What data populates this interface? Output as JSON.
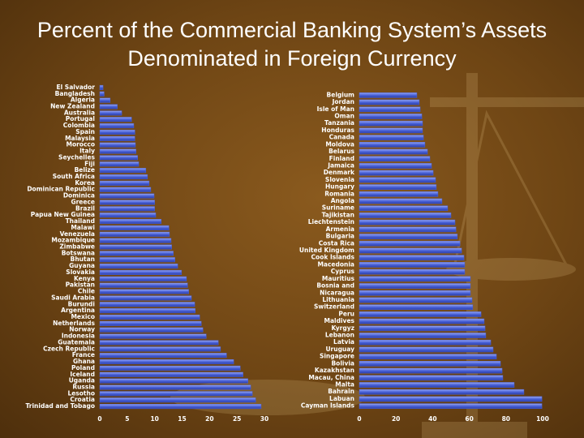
{
  "title": "Percent of the Commercial Banking System’s Assets Denominated in Foreign Currency",
  "chart_data": [
    {
      "type": "hbar",
      "color": "#4a62d8",
      "categories": [
        "El Salvador",
        "Bangladesh",
        "Algeria",
        "New Zealand",
        "Australia",
        "Portugal",
        "Colombia",
        "Spain",
        "Malaysia",
        "Morocco",
        "Italy",
        "Seychelles",
        "Fiji",
        "Belize",
        "South Africa",
        "Korea",
        "Dominican Republic",
        "Dominica",
        "Greece",
        "Brazil",
        "Papua New Guinea",
        "Thailand",
        "Malawi",
        "Venezuela",
        "Mozambique",
        "Zimbabwe",
        "Botswana",
        "Bhutan",
        "Guyana",
        "Slovakia",
        "Kenya",
        "Pakistan",
        "Chile",
        "Saudi Arabia",
        "Burundi",
        "Argentina",
        "Mexico",
        "Netherlands",
        "Norway",
        "Indonesia",
        "Guatemala",
        "Czech Republic",
        "France",
        "Ghana",
        "Poland",
        "Iceland",
        "Uganda",
        "Russia",
        "Lesotho",
        "Croatia",
        "Trinidad and Tobago"
      ],
      "values": [
        0.6,
        0.8,
        1.9,
        3.2,
        4.0,
        5.8,
        6.2,
        6.4,
        6.4,
        6.5,
        6.6,
        6.9,
        7.1,
        8.4,
        8.7,
        9.0,
        9.3,
        9.9,
        10.0,
        10.0,
        10.2,
        11.2,
        12.6,
        12.7,
        13.0,
        13.1,
        13.4,
        13.7,
        14.2,
        14.9,
        15.8,
        16.0,
        16.2,
        16.7,
        17.3,
        17.4,
        18.2,
        18.5,
        18.8,
        19.4,
        21.6,
        22.0,
        23.1,
        24.4,
        25.6,
        26.1,
        27.0,
        27.5,
        27.8,
        28.4,
        29.4
      ],
      "xlim": [
        0,
        30
      ],
      "xticks": [
        0,
        5,
        10,
        15,
        20,
        25,
        30
      ]
    },
    {
      "type": "hbar",
      "color": "#4a62d8",
      "categories": [
        "Belgium",
        "Jordan",
        "Isle of Man",
        "Oman",
        "Tanzania",
        "Honduras",
        "Canada",
        "Moldova",
        "Belarus",
        "Finland",
        "Jamaica",
        "Denmark",
        "Slovenia",
        "Hungary",
        "Romania",
        "Angola",
        "Suriname",
        "Tajikistan",
        "Liechtenstein",
        "Armenia",
        "Bulgaria",
        "Costa Rica",
        "United Kingdom",
        "Cook Islands",
        "Macedonia",
        "Cyprus",
        "Mauritius",
        "Bosnia and",
        "Nicaragua",
        "Lithuania",
        "Switzerland",
        "Peru",
        "Maldives",
        "Kyrgyz",
        "Lebanon",
        "Latvia",
        "Uruguay",
        "Singapore",
        "Bolivia",
        "Kazakhstan",
        "Macau, China",
        "Malta",
        "Bahrain",
        "Labuan",
        "Cayman Islands"
      ],
      "values": [
        31.4,
        32.7,
        33.2,
        34.1,
        34.5,
        34.5,
        35.0,
        35.8,
        37.2,
        38.5,
        39.4,
        40.3,
        41.6,
        42.0,
        42.9,
        45.1,
        48.2,
        50.0,
        52.2,
        52.7,
        53.5,
        54.9,
        55.8,
        57.1,
        57.5,
        57.5,
        60.6,
        60.6,
        60.6,
        61.5,
        61.9,
        66.4,
        68.1,
        68.6,
        69.0,
        71.7,
        73.0,
        74.8,
        77.0,
        77.9,
        78.3,
        84.5,
        89.8,
        99.6,
        99.6
      ],
      "xlim": [
        0,
        100
      ],
      "xticks": [
        0,
        20,
        40,
        60,
        80,
        100
      ]
    }
  ]
}
